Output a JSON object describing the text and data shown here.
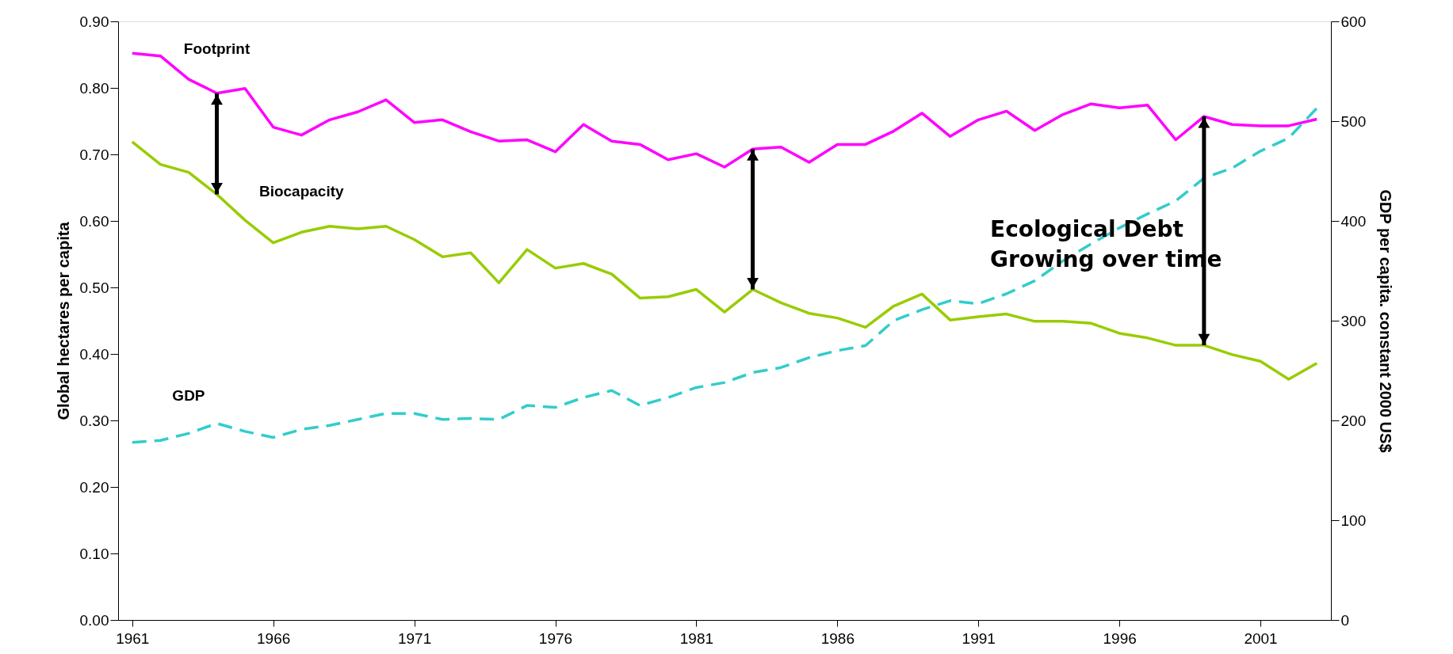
{
  "chart_data": {
    "type": "line",
    "ylabel": "Global hectares per capita",
    "y2label": "GDP per capita.  constant 2000 US$",
    "x": [
      1961,
      1962,
      1963,
      1964,
      1965,
      1966,
      1967,
      1968,
      1969,
      1970,
      1971,
      1972,
      1973,
      1974,
      1975,
      1976,
      1977,
      1978,
      1979,
      1980,
      1981,
      1982,
      1983,
      1984,
      1985,
      1986,
      1987,
      1988,
      1989,
      1990,
      1991,
      1992,
      1993,
      1994,
      1995,
      1996,
      1997,
      1998,
      1999,
      2000,
      2001,
      2002,
      2003
    ],
    "xlim": [
      1960.5,
      2003.5
    ],
    "xticks": [
      1961,
      1966,
      1971,
      1976,
      1981,
      1986,
      1991,
      1996,
      2001
    ],
    "ylim": [
      0,
      0.9
    ],
    "yticks": [
      {
        "value": 0,
        "label": "0.00"
      },
      {
        "value": 0.1,
        "label": "0.10"
      },
      {
        "value": 0.2,
        "label": "0.20"
      },
      {
        "value": 0.3,
        "label": "0.30"
      },
      {
        "value": 0.4,
        "label": "0.40"
      },
      {
        "value": 0.5,
        "label": "0.50"
      },
      {
        "value": 0.6,
        "label": "0.60"
      },
      {
        "value": 0.7,
        "label": "0.70"
      },
      {
        "value": 0.8,
        "label": "0.80"
      },
      {
        "value": 0.9,
        "label": "0.90"
      }
    ],
    "y2lim": [
      0,
      600
    ],
    "y2ticks": [
      0,
      100,
      200,
      300,
      400,
      500,
      600
    ],
    "series": [
      {
        "name": "Footprint",
        "color": "#ff00ff",
        "line_style": "solid",
        "values": [
          0.852,
          0.848,
          0.813,
          0.792,
          0.799,
          0.741,
          0.729,
          0.752,
          0.764,
          0.782,
          0.748,
          0.752,
          0.734,
          0.72,
          0.722,
          0.704,
          0.745,
          0.72,
          0.715,
          0.692,
          0.701,
          0.681,
          0.708,
          0.711,
          0.688,
          0.715,
          0.715,
          0.735,
          0.762,
          0.727,
          0.752,
          0.765,
          0.736,
          0.76,
          0.776,
          0.77,
          0.774,
          0.722,
          0.757,
          0.745,
          0.743,
          0.743,
          0.753
        ]
      },
      {
        "name": "Biocapacity",
        "color": "#99cc00",
        "line_style": "solid",
        "values": [
          0.719,
          0.685,
          0.673,
          0.64,
          0.601,
          0.567,
          0.583,
          0.592,
          0.588,
          0.592,
          0.572,
          0.546,
          0.552,
          0.507,
          0.557,
          0.529,
          0.536,
          0.52,
          0.484,
          0.486,
          0.497,
          0.463,
          0.497,
          0.477,
          0.461,
          0.454,
          0.44,
          0.472,
          0.49,
          0.451,
          0.456,
          0.46,
          0.449,
          0.449,
          0.446,
          0.431,
          0.424,
          0.413,
          0.413,
          0.399,
          0.389,
          0.362,
          0.386
        ]
      },
      {
        "name": "GDP",
        "color": "#33cccc",
        "line_style": "dashed",
        "axis": "y2",
        "values": [
          178,
          180,
          187,
          197,
          189,
          183,
          191,
          195,
          201,
          207,
          207,
          201,
          202,
          201,
          215,
          213,
          223,
          230,
          215,
          223,
          233,
          238,
          248,
          253,
          263,
          270,
          275,
          300,
          311,
          320,
          317,
          327,
          340,
          360,
          377,
          393,
          407,
          420,
          443,
          453,
          470,
          483,
          513
        ]
      }
    ],
    "annotations": [
      "Ecological Debt\nGrowing over time"
    ],
    "grid": false,
    "legend": false,
    "marker": "none"
  }
}
